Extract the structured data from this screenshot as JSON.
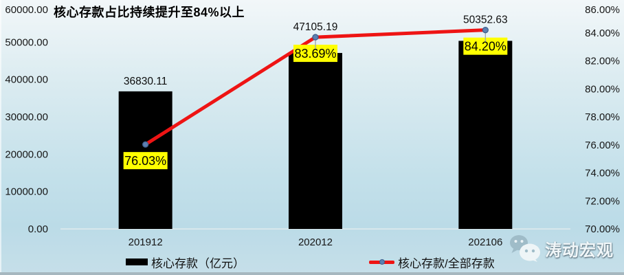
{
  "title": "核心存款占比持续提升至84%以上",
  "chart_data": {
    "type": "combo-bar-line",
    "categories": [
      "201912",
      "202012",
      "202106"
    ],
    "series": [
      {
        "name": "核心存款（亿元）",
        "type": "bar",
        "axis": "left",
        "values": [
          36830.11,
          47105.19,
          50352.63
        ],
        "data_labels": [
          "36830.11",
          "47105.19",
          "50352.63"
        ],
        "color": "#000000"
      },
      {
        "name": "核心存款/全部存款",
        "type": "line",
        "axis": "right",
        "values": [
          76.03,
          83.69,
          84.2
        ],
        "data_labels": [
          "76.03%",
          "83.69%",
          "84.20%"
        ],
        "color": "#ee1414",
        "marker_color": "#5d80b2",
        "marker_edge": "#3f608e",
        "label_bg": "#ffff00"
      }
    ],
    "left_axis": {
      "min": 0,
      "max": 60000,
      "step": 10000,
      "tick_labels": [
        "0.00",
        "10000.00",
        "20000.00",
        "30000.00",
        "40000.00",
        "50000.00",
        "60000.00"
      ]
    },
    "right_axis": {
      "min": 70,
      "max": 86,
      "step": 2,
      "tick_labels": [
        "70.00%",
        "72.00%",
        "74.00%",
        "76.00%",
        "78.00%",
        "80.00%",
        "82.00%",
        "84.00%",
        "86.00%"
      ]
    },
    "grid": false,
    "legend_position": "bottom"
  },
  "legend": {
    "items": [
      {
        "label": "核心存款（亿元）",
        "swatch": "bar"
      },
      {
        "label": "核心存款/全部存款",
        "swatch": "line"
      }
    ]
  },
  "watermark": {
    "text": "涛动宏观",
    "icon": "wechat-icon"
  }
}
